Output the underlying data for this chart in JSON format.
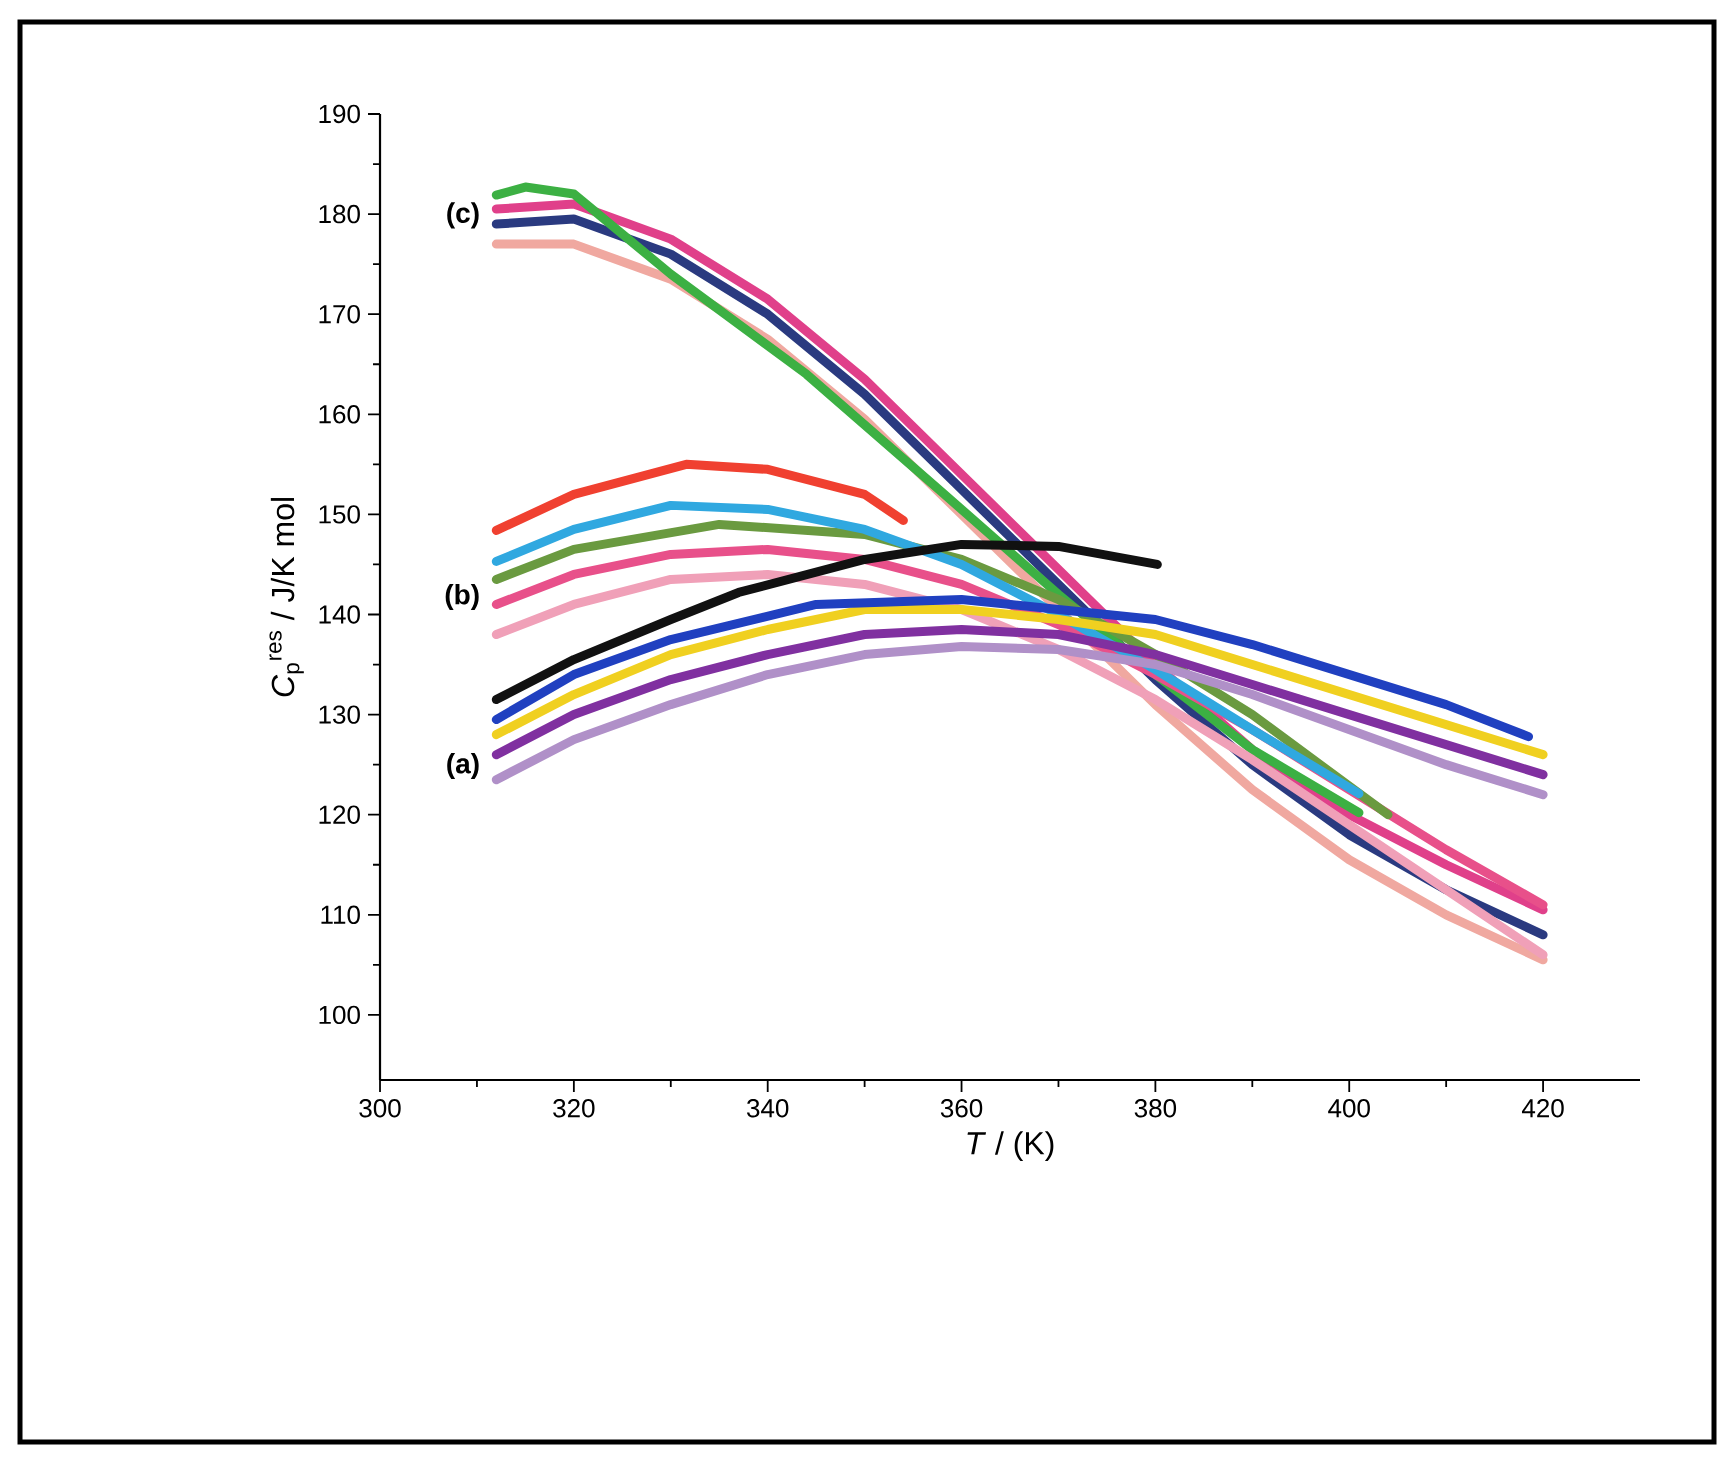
{
  "chart_data": {
    "type": "line",
    "xlabel": "*T* / (K)",
    "ylabel": "*C*$_{p}$$^{res}$ / J/K mol",
    "xlim": [
      300,
      430
    ],
    "ylim": [
      93.5,
      190
    ],
    "xticks": [
      300,
      320,
      340,
      360,
      380,
      400,
      420
    ],
    "yticks": [
      100,
      110,
      120,
      130,
      140,
      150,
      160,
      170,
      180,
      190
    ],
    "annotations": [
      "(c)",
      "(b)",
      "(a)"
    ],
    "series": [
      {
        "color": "#f0a8a0",
        "x": [
          312,
          320,
          330,
          340,
          350,
          360,
          370,
          380,
          390,
          400,
          410,
          420
        ],
        "values": [
          177,
          177,
          173.5,
          167.5,
          159.5,
          150,
          140.5,
          131,
          122.5,
          115.5,
          110,
          105.5
        ]
      },
      {
        "color": "#2a3a80",
        "x": [
          312,
          320,
          330,
          340,
          350,
          360,
          370,
          380,
          390,
          400,
          410,
          420
        ],
        "values": [
          179,
          179.5,
          176,
          170,
          162,
          152.5,
          143,
          133.5,
          125,
          118,
          112.5,
          108
        ]
      },
      {
        "color": "#e0408a",
        "x": [
          312,
          320,
          330,
          340,
          350,
          360,
          370,
          380,
          390,
          400,
          410,
          420
        ],
        "values": [
          180.5,
          181,
          177.5,
          171.5,
          163.5,
          154,
          144.5,
          135,
          126.5,
          120,
          115,
          110.5
        ]
      },
      {
        "color": "#3cb043",
        "x": [
          312,
          315,
          320,
          330,
          344,
          358,
          370,
          380,
          390,
          401
        ],
        "values": [
          181.9,
          182.7,
          182,
          174,
          164,
          152.2,
          142,
          134,
          126.5,
          120.2
        ]
      },
      {
        "color": "#f0a0b8",
        "x": [
          312,
          320,
          330,
          340,
          350,
          360,
          370,
          380,
          390,
          400,
          410,
          420
        ],
        "values": [
          138,
          141,
          143.5,
          144,
          143,
          140.5,
          136.5,
          131.5,
          125.5,
          119,
          112.5,
          106
        ]
      },
      {
        "color": "#e8508a",
        "x": [
          312,
          320,
          330,
          340,
          350,
          360,
          370,
          380,
          390,
          400,
          410,
          420
        ],
        "values": [
          141,
          144,
          146,
          146.5,
          145.5,
          143,
          139,
          134,
          128.5,
          122.5,
          116.5,
          111
        ]
      },
      {
        "color": "#6a9a40",
        "x": [
          312,
          320,
          335,
          350,
          360,
          370,
          380,
          390,
          404
        ],
        "values": [
          143.5,
          146.5,
          149,
          148,
          145.5,
          141.5,
          136,
          130,
          120
        ]
      },
      {
        "color": "#30a8e0",
        "x": [
          312,
          320,
          330,
          340,
          350,
          360,
          370,
          380,
          390,
          401
        ],
        "values": [
          145.3,
          148.5,
          150.9,
          150.5,
          148.5,
          145,
          140,
          134.5,
          128.5,
          122.1
        ]
      },
      {
        "color": "#f04030",
        "x": [
          312,
          320,
          331.6,
          340,
          350,
          354
        ],
        "values": [
          148.4,
          152,
          155,
          154.5,
          152,
          149.4
        ]
      },
      {
        "color": "#b090c8",
        "x": [
          312,
          320,
          330,
          340,
          350,
          360,
          370,
          380,
          390,
          400,
          410,
          420
        ],
        "values": [
          123.5,
          127.5,
          131,
          134,
          136,
          136.8,
          136.5,
          135,
          132,
          128.5,
          125,
          122
        ]
      },
      {
        "color": "#8030a0",
        "x": [
          312,
          320,
          330,
          340,
          350,
          360,
          370,
          380,
          390,
          400,
          410,
          420
        ],
        "values": [
          126,
          130,
          133.5,
          136,
          138,
          138.5,
          138,
          136,
          133,
          130,
          127,
          124
        ]
      },
      {
        "color": "#f0d020",
        "x": [
          312,
          320,
          330,
          340,
          350,
          360,
          370,
          380,
          390,
          400,
          410,
          420
        ],
        "values": [
          128,
          132,
          136,
          138.5,
          140.5,
          140.5,
          139.5,
          138,
          135,
          132,
          129,
          126
        ]
      },
      {
        "color": "#2040c0",
        "x": [
          312,
          320,
          330,
          345,
          360,
          370,
          380,
          390,
          400,
          410,
          418.5
        ],
        "values": [
          129.5,
          134,
          137.5,
          141,
          141.5,
          140.5,
          139.5,
          137,
          134,
          131,
          127.8
        ]
      },
      {
        "color": "#111111",
        "x": [
          312,
          320,
          330,
          337,
          350,
          360,
          370,
          380.2
        ],
        "values": [
          131.5,
          135.5,
          139.5,
          142.2,
          145.5,
          147,
          146.8,
          145
        ]
      }
    ]
  }
}
